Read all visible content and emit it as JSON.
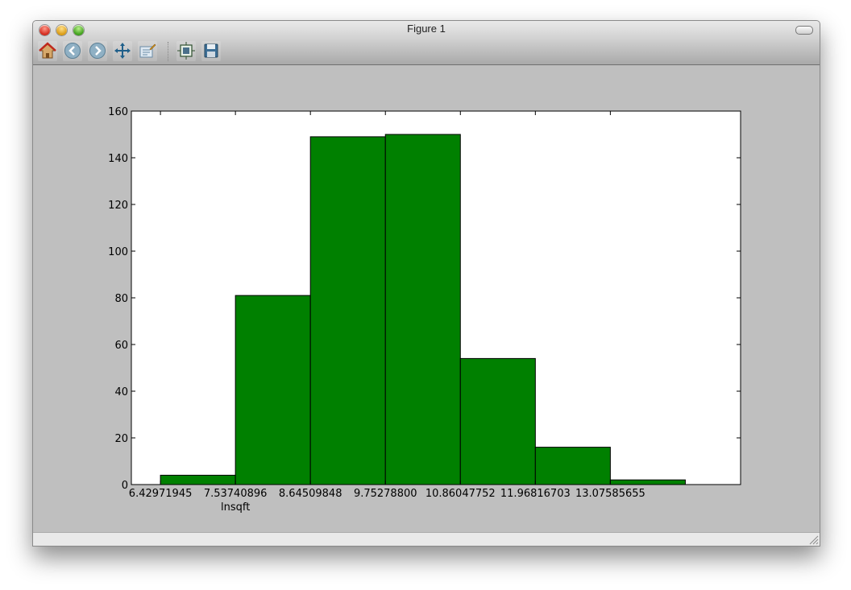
{
  "window": {
    "title": "Figure 1"
  },
  "toolbar": {
    "buttons": [
      {
        "icon": "home-icon"
      },
      {
        "icon": "back-icon"
      },
      {
        "icon": "forward-icon"
      },
      {
        "icon": "pan-icon"
      },
      {
        "icon": "zoom-rect-icon"
      },
      {
        "icon": "subplots-icon"
      },
      {
        "icon": "save-icon"
      }
    ]
  },
  "chart_data": {
    "type": "bar",
    "title": "",
    "xlabel": "lnsqft",
    "ylabel": "",
    "bar_color": "#008000",
    "edge_color": "#000000",
    "bin_edges": [
      6.42971945,
      7.53740896,
      8.64509848,
      9.752788,
      10.86047752,
      11.96816703,
      13.07585655,
      14.18354607
    ],
    "values": [
      4,
      81,
      149,
      150,
      54,
      16,
      2
    ],
    "xlim": [
      6.0,
      15.0
    ],
    "ylim": [
      0,
      160
    ],
    "xticks": [
      6.42971945,
      7.53740896,
      8.64509848,
      9.752788,
      10.86047752,
      11.96816703,
      13.07585655
    ],
    "xtick_labels": [
      "6.42971945",
      "7.53740896",
      "8.64509848",
      "9.75278800",
      "10.86047752",
      "11.96816703",
      "13.07585655"
    ],
    "yticks": [
      0,
      20,
      40,
      60,
      80,
      100,
      120,
      140,
      160
    ],
    "grid": false
  }
}
